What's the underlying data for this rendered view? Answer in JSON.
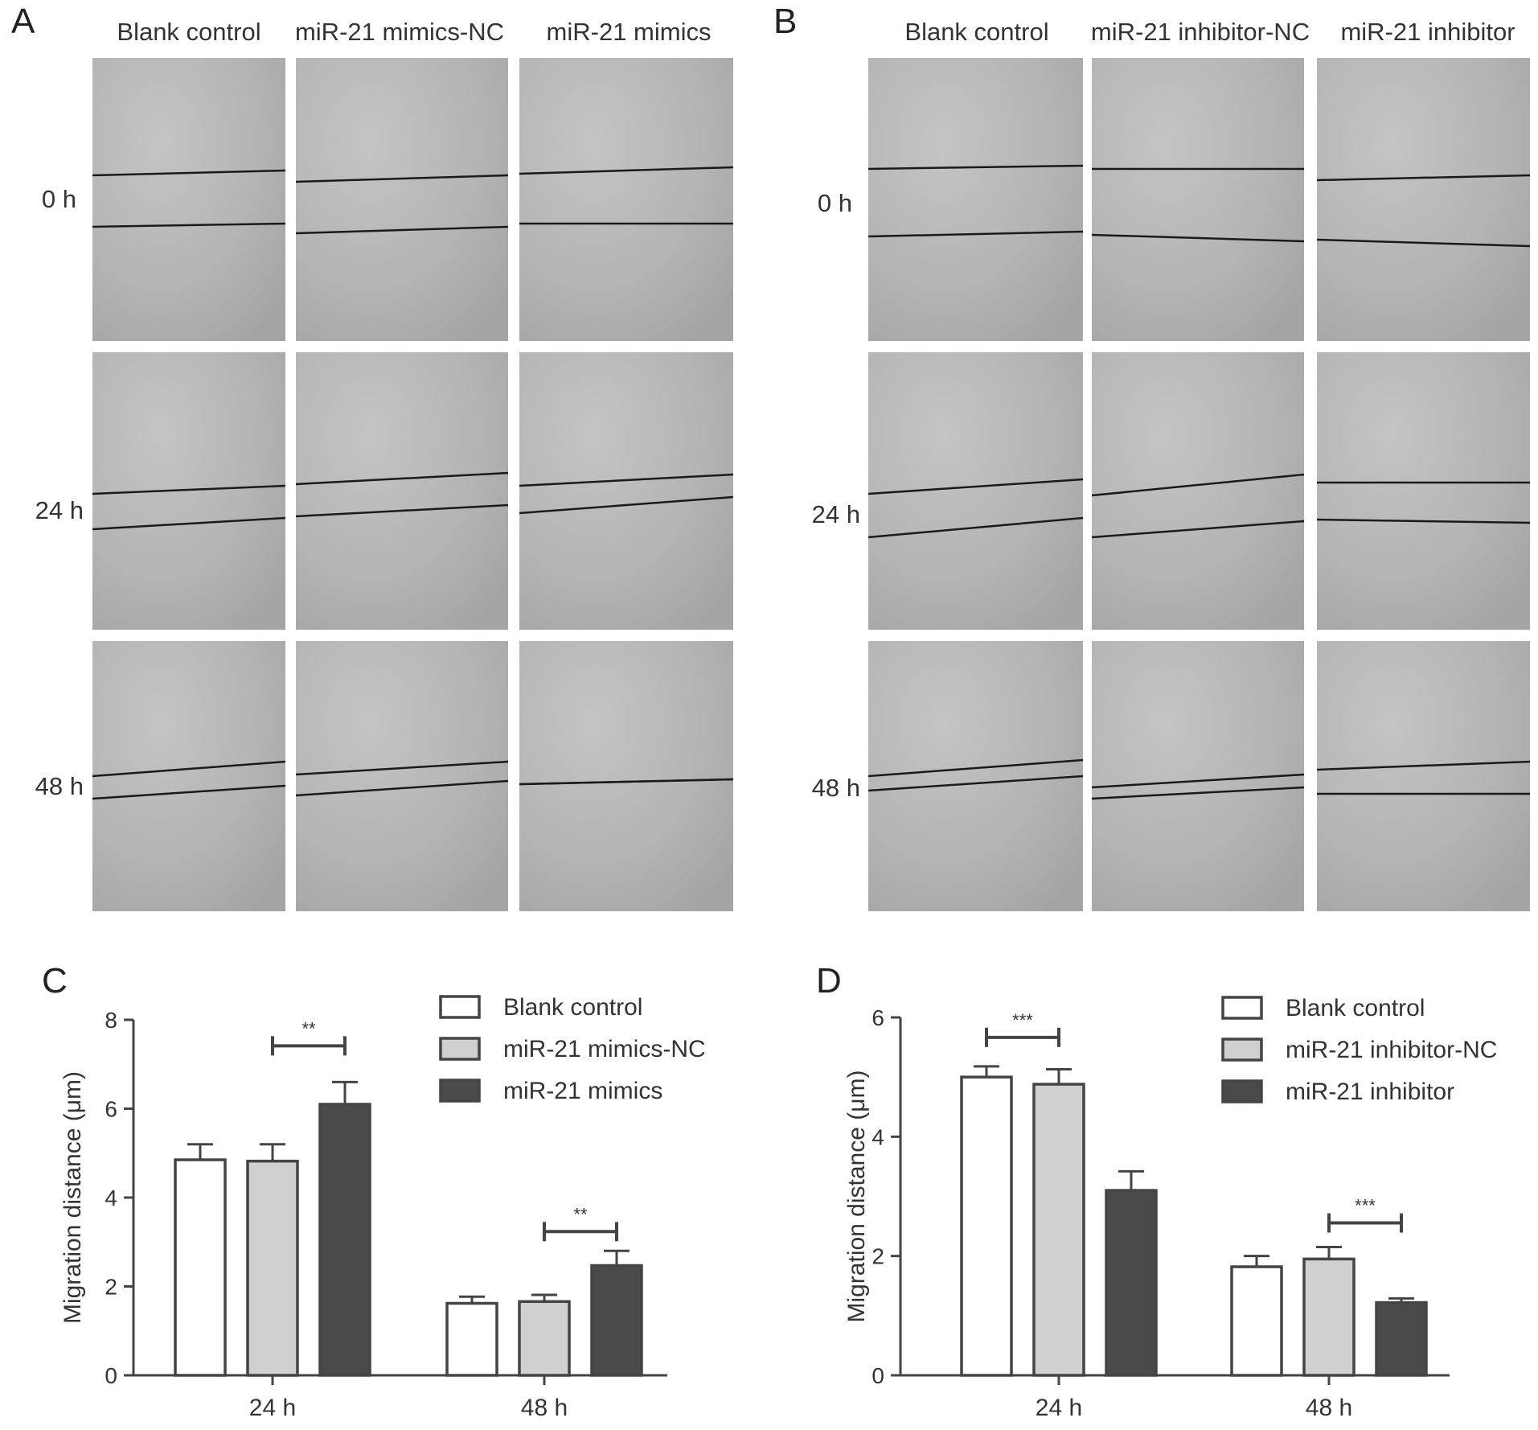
{
  "panels": {
    "A": {
      "letter": "A",
      "columns": [
        "Blank control",
        "miR-21 mimics-NC",
        "miR-21 mimics"
      ],
      "rows": [
        "0 h",
        "24 h",
        "48 h"
      ]
    },
    "B": {
      "letter": "B",
      "columns": [
        "Blank control",
        "miR-21 inhibitor-NC",
        "miR-21 inhibitor"
      ],
      "rows": [
        "0 h",
        "24 h",
        "48 h"
      ]
    }
  },
  "chart_data": [
    {
      "panel": "C",
      "type": "bar",
      "categories": [
        "24 h",
        "48 h"
      ],
      "series": [
        {
          "name": "Blank control",
          "values": [
            4.85,
            1.62
          ],
          "errors": [
            0.35,
            0.15
          ],
          "color": "#ffffff"
        },
        {
          "name": "miR-21 mimics-NC",
          "values": [
            4.82,
            1.66
          ],
          "errors": [
            0.38,
            0.15
          ],
          "color": "#d0d0d0"
        },
        {
          "name": "miR-21 mimics",
          "values": [
            6.1,
            2.47
          ],
          "errors": [
            0.5,
            0.33
          ],
          "color": "#4a4a4a"
        }
      ],
      "significance": [
        {
          "category": 0,
          "from": 1,
          "to": 2,
          "label": "**"
        },
        {
          "category": 1,
          "from": 1,
          "to": 2,
          "label": "**"
        }
      ],
      "ylabel": "Migration distance (μm)",
      "ylim": [
        0,
        8
      ],
      "yticks": [
        0,
        2,
        4,
        6,
        8
      ],
      "legend": "top-right"
    },
    {
      "panel": "D",
      "type": "bar",
      "categories": [
        "24 h",
        "48 h"
      ],
      "series": [
        {
          "name": "Blank control",
          "values": [
            5.0,
            1.82
          ],
          "errors": [
            0.18,
            0.18
          ],
          "color": "#ffffff"
        },
        {
          "name": "miR-21 inhibitor-NC",
          "values": [
            4.88,
            1.95
          ],
          "errors": [
            0.25,
            0.2
          ],
          "color": "#d0d0d0"
        },
        {
          "name": "miR-21 inhibitor",
          "values": [
            3.1,
            1.22
          ],
          "errors": [
            0.32,
            0.07
          ],
          "color": "#4a4a4a"
        }
      ],
      "significance": [
        {
          "category": 0,
          "from": 0,
          "to": 1,
          "label": "***"
        },
        {
          "category": 1,
          "from": 1,
          "to": 2,
          "label": "***"
        }
      ],
      "ylabel": "Migration distance (μm)",
      "ylim": [
        0,
        6
      ],
      "yticks": [
        0,
        2,
        4,
        6
      ],
      "legend": "top-right"
    }
  ]
}
